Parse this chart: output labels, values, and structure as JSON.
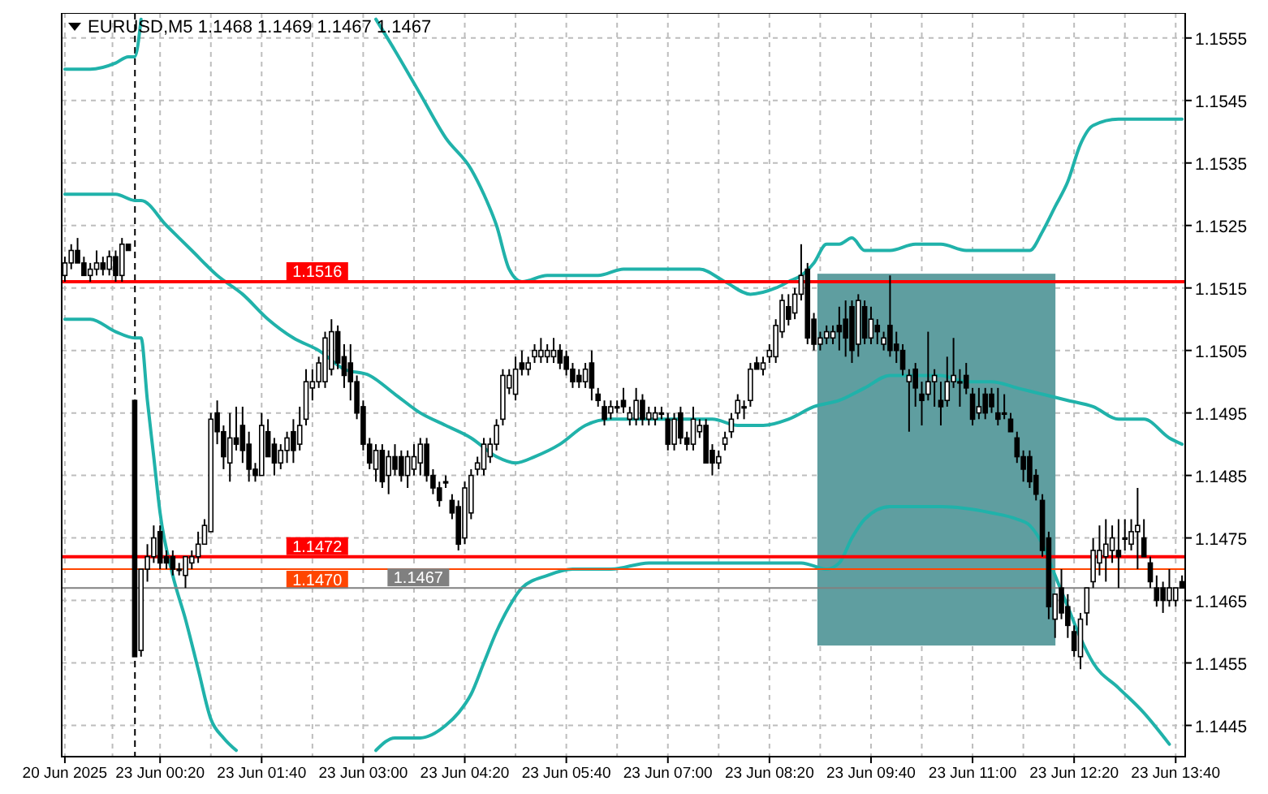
{
  "chart_data": {
    "type": "candlestick",
    "title": "EURUSD,M5  1.1468 1.1469 1.1467 1.1467",
    "categories": [
      "20 Jun 2025",
      null,
      null,
      null,
      null,
      null,
      null,
      null,
      null,
      null,
      null,
      null,
      null,
      null,
      null,
      "23 Jun 00:20",
      null,
      null,
      null,
      null,
      null,
      null,
      null,
      null,
      null,
      null,
      null,
      null,
      null,
      null,
      null,
      "23 Jun 01:40",
      null,
      null,
      null,
      null,
      null,
      null,
      null,
      null,
      null,
      null,
      null,
      null,
      null,
      null,
      null,
      "23 Jun 03:00",
      null,
      null,
      null,
      null,
      null,
      null,
      null,
      null,
      null,
      null,
      null,
      null,
      null,
      null,
      null,
      "23 Jun 04:20",
      null,
      null,
      null,
      null,
      null,
      null,
      null,
      null,
      null,
      null,
      null,
      null,
      null,
      null,
      null,
      "23 Jun 05:40",
      null,
      null,
      null,
      null,
      null,
      null,
      null,
      null,
      null,
      null,
      null,
      null,
      null,
      null,
      null,
      "23 Jun 07:00",
      null,
      null,
      null,
      null,
      null,
      null,
      null,
      null,
      null,
      null,
      null,
      null,
      null,
      null,
      null,
      "23 Jun 08:20",
      null,
      null,
      null,
      null,
      null,
      null,
      null,
      null,
      null,
      null,
      null,
      null,
      null,
      null,
      null,
      "23 Jun 09:40",
      null,
      null,
      null,
      null,
      null,
      null,
      null,
      null,
      null,
      null,
      null,
      null,
      null,
      null,
      null,
      "23 Jun 11:00",
      null,
      null,
      null,
      null,
      null,
      null,
      null,
      null,
      null,
      null,
      null,
      null,
      null,
      null,
      null,
      "23 Jun 12:20",
      null,
      null,
      null,
      null,
      null,
      null,
      null,
      null,
      null,
      null,
      null,
      null,
      null,
      null,
      null,
      "23 Jun 13:40",
      null
    ],
    "ohlc": [
      [
        1.1517,
        1.152,
        1.1516,
        1.1519
      ],
      [
        1.1519,
        1.1522,
        1.1518,
        1.1521
      ],
      [
        1.1521,
        1.1523,
        1.1519,
        1.1519
      ],
      [
        1.1519,
        1.152,
        1.1517,
        1.1517
      ],
      [
        1.1517,
        1.1519,
        1.1516,
        1.1518
      ],
      [
        1.1518,
        1.1521,
        1.1517,
        1.1519
      ],
      [
        1.1519,
        1.152,
        1.1517,
        1.1518
      ],
      [
        1.1518,
        1.1521,
        1.1517,
        1.152
      ],
      [
        1.152,
        1.1521,
        1.1516,
        1.1517
      ],
      [
        1.1517,
        1.1523,
        1.1516,
        1.1522
      ],
      [
        1.1522,
        1.1522,
        1.1521,
        1.1521
      ],
      [
        1.1497,
        1.1497,
        1.1456,
        1.1456
      ],
      [
        1.1457,
        1.147,
        1.1456,
        1.147
      ],
      [
        1.147,
        1.1474,
        1.1468,
        1.1472
      ],
      [
        1.1472,
        1.1477,
        1.1471,
        1.1475
      ],
      [
        1.1476,
        1.1477,
        1.147,
        1.1471
      ],
      [
        1.1472,
        1.1473,
        1.147,
        1.1471
      ],
      [
        1.1472,
        1.1473,
        1.1469,
        1.147
      ],
      [
        1.147,
        1.1471,
        1.1469,
        1.147
      ],
      [
        1.1469,
        1.1472,
        1.1467,
        1.1472
      ],
      [
        1.1471,
        1.1473,
        1.147,
        1.1472
      ],
      [
        1.1472,
        1.1476,
        1.1471,
        1.1474
      ],
      [
        1.1474,
        1.1478,
        1.1474,
        1.1477
      ],
      [
        1.1476,
        1.1495,
        1.1476,
        1.1494
      ],
      [
        1.1495,
        1.1497,
        1.149,
        1.1492
      ],
      [
        1.1492,
        1.1493,
        1.1486,
        1.1488
      ],
      [
        1.1487,
        1.1495,
        1.1484,
        1.1491
      ],
      [
        1.1491,
        1.1496,
        1.1489,
        1.149
      ],
      [
        1.1493,
        1.1496,
        1.1487,
        1.1489
      ],
      [
        1.149,
        1.1492,
        1.1484,
        1.1486
      ],
      [
        1.1486,
        1.1487,
        1.1484,
        1.1485
      ],
      [
        1.1485,
        1.1495,
        1.1485,
        1.1493
      ],
      [
        1.1492,
        1.1494,
        1.1488,
        1.1488
      ],
      [
        1.149,
        1.1491,
        1.1485,
        1.1487
      ],
      [
        1.1487,
        1.149,
        1.1486,
        1.1489
      ],
      [
        1.1489,
        1.1492,
        1.1487,
        1.1491
      ],
      [
        1.1492,
        1.1494,
        1.1487,
        1.1489
      ],
      [
        1.149,
        1.1496,
        1.1489,
        1.1493
      ],
      [
        1.1494,
        1.1502,
        1.1493,
        1.15
      ],
      [
        1.1499,
        1.1502,
        1.1497,
        1.15
      ],
      [
        1.15,
        1.1504,
        1.1499,
        1.1503
      ],
      [
        1.15,
        1.1508,
        1.1499,
        1.1507
      ],
      [
        1.1502,
        1.151,
        1.1501,
        1.1508
      ],
      [
        1.1508,
        1.1509,
        1.1502,
        1.1503
      ],
      [
        1.1504,
        1.1506,
        1.1499,
        1.1501
      ],
      [
        1.1503,
        1.1506,
        1.1497,
        1.15
      ],
      [
        1.15,
        1.1501,
        1.1494,
        1.1495
      ],
      [
        1.1496,
        1.1497,
        1.1489,
        1.149
      ],
      [
        1.149,
        1.1491,
        1.1486,
        1.1487
      ],
      [
        1.1486,
        1.149,
        1.1484,
        1.1489
      ],
      [
        1.1489,
        1.149,
        1.1483,
        1.1484
      ],
      [
        1.1485,
        1.1489,
        1.1482,
        1.1488
      ],
      [
        1.1488,
        1.149,
        1.1485,
        1.1486
      ],
      [
        1.1488,
        1.1489,
        1.1484,
        1.1485
      ],
      [
        1.1485,
        1.1489,
        1.1483,
        1.1488
      ],
      [
        1.1486,
        1.149,
        1.1485,
        1.1488
      ],
      [
        1.1487,
        1.1491,
        1.1485,
        1.149
      ],
      [
        1.149,
        1.1491,
        1.1484,
        1.1485
      ],
      [
        1.1485,
        1.1486,
        1.1482,
        1.1483
      ],
      [
        1.1483,
        1.1484,
        1.148,
        1.1481
      ],
      [
        1.1484,
        1.1485,
        1.1483,
        1.1484
      ],
      [
        1.1481,
        1.1482,
        1.1478,
        1.1479
      ],
      [
        1.148,
        1.1481,
        1.1473,
        1.1474
      ],
      [
        1.1475,
        1.1484,
        1.1474,
        1.1483
      ],
      [
        1.1479,
        1.1486,
        1.1478,
        1.1485
      ],
      [
        1.1486,
        1.1488,
        1.1485,
        1.1487
      ],
      [
        1.1486,
        1.1491,
        1.1485,
        1.149
      ],
      [
        1.1488,
        1.1491,
        1.1487,
        1.149
      ],
      [
        1.149,
        1.1494,
        1.1489,
        1.1493
      ],
      [
        1.1494,
        1.1502,
        1.1493,
        1.1501
      ],
      [
        1.1499,
        1.1502,
        1.1498,
        1.1501
      ],
      [
        1.1498,
        1.1504,
        1.1497,
        1.1502
      ],
      [
        1.1503,
        1.1505,
        1.1501,
        1.1502
      ],
      [
        1.1502,
        1.1504,
        1.1501,
        1.1503
      ],
      [
        1.1504,
        1.1506,
        1.1503,
        1.1505
      ],
      [
        1.1504,
        1.1507,
        1.1503,
        1.1505
      ],
      [
        1.1504,
        1.1506,
        1.1503,
        1.1505
      ],
      [
        1.1504,
        1.1507,
        1.1503,
        1.1505
      ],
      [
        1.1505,
        1.1506,
        1.1502,
        1.1503
      ],
      [
        1.1504,
        1.1505,
        1.1501,
        1.1502
      ],
      [
        1.1502,
        1.1503,
        1.1499,
        1.15
      ],
      [
        1.1501,
        1.1502,
        1.1499,
        1.15
      ],
      [
        1.15,
        1.1503,
        1.1499,
        1.1502
      ],
      [
        1.1503,
        1.1505,
        1.1497,
        1.1499
      ],
      [
        1.1498,
        1.1499,
        1.1496,
        1.1497
      ],
      [
        1.1496,
        1.1497,
        1.1493,
        1.1494
      ],
      [
        1.1495,
        1.1497,
        1.1494,
        1.1496
      ],
      [
        1.1496,
        1.1497,
        1.1495,
        1.1496
      ],
      [
        1.1497,
        1.1499,
        1.1495,
        1.1496
      ],
      [
        1.1494,
        1.1496,
        1.1493,
        1.1495
      ],
      [
        1.1494,
        1.1499,
        1.1493,
        1.1497
      ],
      [
        1.1497,
        1.1498,
        1.1493,
        1.1494
      ],
      [
        1.1494,
        1.1496,
        1.1493,
        1.1495
      ],
      [
        1.1494,
        1.1496,
        1.1493,
        1.1495
      ],
      [
        1.1495,
        1.1496,
        1.1494,
        1.1495
      ],
      [
        1.1494,
        1.1495,
        1.1489,
        1.149
      ],
      [
        1.149,
        1.1495,
        1.1489,
        1.1494
      ],
      [
        1.1495,
        1.1496,
        1.149,
        1.1491
      ],
      [
        1.1491,
        1.1492,
        1.1489,
        1.149
      ],
      [
        1.149,
        1.1496,
        1.1489,
        1.1494
      ],
      [
        1.1492,
        1.1494,
        1.1491,
        1.1493
      ],
      [
        1.1493,
        1.1494,
        1.1487,
        1.1487
      ],
      [
        1.1489,
        1.149,
        1.1485,
        1.1487
      ],
      [
        1.1487,
        1.1489,
        1.1486,
        1.1488
      ],
      [
        1.149,
        1.1492,
        1.1489,
        1.1491
      ],
      [
        1.1492,
        1.1495,
        1.1491,
        1.1494
      ],
      [
        1.1495,
        1.1498,
        1.1494,
        1.1497
      ],
      [
        1.1496,
        1.1497,
        1.1494,
        1.1496
      ],
      [
        1.1497,
        1.1503,
        1.1496,
        1.1502
      ],
      [
        1.1503,
        1.1504,
        1.1502,
        1.1502
      ],
      [
        1.1502,
        1.1504,
        1.1501,
        1.1503
      ],
      [
        1.1504,
        1.1506,
        1.1503,
        1.1505
      ],
      [
        1.1504,
        1.151,
        1.1503,
        1.1509
      ],
      [
        1.1508,
        1.1514,
        1.1507,
        1.1513
      ],
      [
        1.1512,
        1.1514,
        1.1509,
        1.151
      ],
      [
        1.1511,
        1.1515,
        1.151,
        1.1514
      ],
      [
        1.1514,
        1.1522,
        1.1513,
        1.1517
      ],
      [
        1.1518,
        1.1519,
        1.1506,
        1.1507
      ],
      [
        1.151,
        1.1511,
        1.1505,
        1.1506
      ],
      [
        1.1506,
        1.1508,
        1.1505,
        1.1507
      ],
      [
        1.1507,
        1.1509,
        1.1506,
        1.1508
      ],
      [
        1.1507,
        1.1509,
        1.1506,
        1.1508
      ],
      [
        1.1509,
        1.1512,
        1.1505,
        1.1508
      ],
      [
        1.151,
        1.1513,
        1.1504,
        1.1507
      ],
      [
        1.1512,
        1.1513,
        1.1503,
        1.1505
      ],
      [
        1.1506,
        1.1514,
        1.1504,
        1.1513
      ],
      [
        1.1512,
        1.1513,
        1.1506,
        1.1507
      ],
      [
        1.1507,
        1.1512,
        1.1506,
        1.151
      ],
      [
        1.1509,
        1.151,
        1.1506,
        1.1508
      ],
      [
        1.1506,
        1.1508,
        1.1505,
        1.1507
      ],
      [
        1.1509,
        1.1517,
        1.1504,
        1.1505
      ],
      [
        1.1506,
        1.1508,
        1.1503,
        1.1505
      ],
      [
        1.1505,
        1.1506,
        1.1501,
        1.1502
      ],
      [
        1.15,
        1.1502,
        1.1492,
        1.1501
      ],
      [
        1.1502,
        1.1503,
        1.1496,
        1.1499
      ],
      [
        1.1498,
        1.15,
        1.1493,
        1.1497
      ],
      [
        1.1498,
        1.1508,
        1.1497,
        1.15
      ],
      [
        1.15,
        1.1502,
        1.1496,
        1.1501
      ],
      [
        1.1497,
        1.15,
        1.1493,
        1.1496
      ],
      [
        1.1497,
        1.1504,
        1.1496,
        1.15
      ],
      [
        1.15,
        1.1507,
        1.1499,
        1.1501
      ],
      [
        1.15,
        1.1502,
        1.1496,
        1.15
      ],
      [
        1.1501,
        1.1503,
        1.1498,
        1.1499
      ],
      [
        1.1498,
        1.1499,
        1.1493,
        1.1494
      ],
      [
        1.1495,
        1.1499,
        1.1494,
        1.1496
      ],
      [
        1.1498,
        1.1499,
        1.1494,
        1.1495
      ],
      [
        1.1498,
        1.1499,
        1.1495,
        1.1496
      ],
      [
        1.1495,
        1.1499,
        1.1493,
        1.1494
      ],
      [
        1.1495,
        1.1498,
        1.1494,
        1.1495
      ],
      [
        1.1494,
        1.1495,
        1.1492,
        1.1492
      ],
      [
        1.1491,
        1.1492,
        1.1487,
        1.1488
      ],
      [
        1.1488,
        1.1489,
        1.1484,
        1.1486
      ],
      [
        1.1488,
        1.1489,
        1.1483,
        1.1484
      ],
      [
        1.1485,
        1.1486,
        1.1481,
        1.1482
      ],
      [
        1.1481,
        1.1482,
        1.1472,
        1.1473
      ],
      [
        1.1475,
        1.1476,
        1.1462,
        1.1464
      ],
      [
        1.1462,
        1.1466,
        1.1459,
        1.1466
      ],
      [
        1.1467,
        1.147,
        1.1462,
        1.1463
      ],
      [
        1.1464,
        1.1466,
        1.1459,
        1.1461
      ],
      [
        1.146,
        1.1461,
        1.1456,
        1.1457
      ],
      [
        1.1456,
        1.1463,
        1.1454,
        1.1462
      ],
      [
        1.1463,
        1.1467,
        1.1461,
        1.1467
      ],
      [
        1.1468,
        1.1475,
        1.1467,
        1.1473
      ],
      [
        1.1471,
        1.1477,
        1.1469,
        1.1473
      ],
      [
        1.1472,
        1.1478,
        1.1468,
        1.1474
      ],
      [
        1.1473,
        1.1477,
        1.1471,
        1.1475
      ],
      [
        1.1473,
        1.1478,
        1.1467,
        1.1472
      ],
      [
        1.1475,
        1.1478,
        1.1473,
        1.1475
      ],
      [
        1.1474,
        1.1478,
        1.1473,
        1.1476
      ],
      [
        1.1476,
        1.1483,
        1.147,
        1.1477
      ],
      [
        1.1475,
        1.1478,
        1.1472,
        1.1472
      ],
      [
        1.1471,
        1.1472,
        1.1467,
        1.1468
      ],
      [
        1.1467,
        1.1469,
        1.1464,
        1.1465
      ],
      [
        1.1467,
        1.1468,
        1.1463,
        1.1465
      ],
      [
        1.1465,
        1.147,
        1.1464,
        1.1467
      ],
      [
        1.1465,
        1.1467,
        1.1464,
        1.1467
      ],
      [
        1.1468,
        1.1469,
        1.1467,
        1.1467
      ]
    ],
    "series": [
      {
        "type": "line",
        "color": "#20b2aa",
        "values": [
          1.155,
          null,
          null,
          null,
          1.155,
          null,
          null,
          null,
          1.1551,
          null,
          1.1552,
          1.1552,
          1.1558,
          null,
          null,
          null,
          null,
          null,
          null,
          null,
          null,
          null,
          null,
          null,
          null,
          null,
          null,
          null,
          null,
          null,
          null,
          null,
          null,
          null,
          null,
          null,
          null,
          null,
          null,
          null,
          null,
          null,
          null,
          null,
          null,
          null,
          null,
          null,
          null,
          1.1558,
          null,
          null,
          1.1553,
          null,
          null,
          null,
          1.1546,
          null,
          null,
          null,
          1.1539,
          null,
          null,
          null,
          1.1534,
          null,
          1.153,
          null,
          1.1525,
          null,
          1.1518,
          null,
          1.1516,
          null,
          null,
          null,
          1.1517,
          null,
          null,
          null,
          1.1517,
          null,
          null,
          null,
          1.1517,
          null,
          null,
          null,
          1.1518,
          null,
          null,
          null,
          1.1518,
          null,
          null,
          null,
          1.1518,
          null,
          null,
          null,
          1.1518,
          null,
          null,
          null,
          1.1516,
          null,
          null,
          null,
          1.1514,
          null,
          null,
          null,
          1.1515,
          null,
          1.1516,
          null,
          1.1517,
          null,
          1.1519,
          null,
          1.1522,
          null,
          1.1522,
          null,
          1.1523,
          null,
          1.1521,
          null,
          null,
          null,
          1.1521,
          null,
          null,
          null,
          1.1522,
          null,
          null,
          null,
          1.1522,
          null,
          null,
          null,
          1.1521,
          null,
          null,
          null,
          1.1521,
          null,
          null,
          null,
          1.1521,
          null,
          1.1521,
          null,
          1.1524,
          null,
          1.1528,
          null,
          1.1532,
          null,
          1.1538,
          null,
          1.1541,
          null,
          null,
          null,
          1.1542,
          null,
          null,
          null,
          1.1542,
          null,
          1.1542,
          null,
          1.1542,
          null,
          1.1542
        ]
      },
      {
        "type": "line",
        "color": "#20b2aa",
        "values": [
          1.153,
          null,
          null,
          null,
          1.153,
          null,
          null,
          null,
          1.153,
          null,
          null,
          1.1529,
          1.1529,
          null,
          null,
          null,
          1.1525,
          null,
          null,
          null,
          1.1521,
          null,
          null,
          null,
          1.1517,
          null,
          null,
          null,
          1.1514,
          null,
          null,
          null,
          1.151,
          null,
          null,
          null,
          1.1507,
          null,
          null,
          null,
          1.1505,
          null,
          null,
          null,
          1.1502,
          null,
          null,
          null,
          1.1501,
          null,
          null,
          null,
          1.1498,
          null,
          null,
          null,
          1.1495,
          null,
          null,
          null,
          1.1493,
          null,
          null,
          null,
          1.1491,
          null,
          null,
          null,
          1.1488,
          null,
          null,
          1.1487,
          null,
          null,
          1.1488,
          null,
          null,
          null,
          1.149,
          null,
          null,
          null,
          1.1493,
          null,
          null,
          null,
          1.1494,
          null,
          null,
          null,
          1.1494,
          null,
          null,
          null,
          1.1494,
          null,
          null,
          null,
          1.1494,
          null,
          null,
          null,
          1.1494,
          null,
          null,
          null,
          1.1493,
          null,
          null,
          null,
          1.1493,
          null,
          null,
          null,
          1.1494,
          null,
          null,
          null,
          1.1496,
          null,
          null,
          null,
          1.1497,
          null,
          null,
          null,
          1.1499,
          null,
          null,
          null,
          1.1501,
          null,
          null,
          null,
          1.1501,
          null,
          null,
          null,
          1.1501,
          null,
          null,
          null,
          1.15,
          null,
          null,
          null,
          1.15,
          null,
          null,
          null,
          1.1499,
          null,
          null,
          null,
          1.1498,
          null,
          null,
          null,
          1.1497,
          null,
          null,
          null,
          1.1496,
          null,
          null,
          null,
          1.1494,
          null,
          null,
          null,
          1.1494,
          null,
          null,
          null,
          1.1491,
          null,
          1.149
        ]
      },
      {
        "type": "line",
        "color": "#20b2aa",
        "values": [
          1.151,
          null,
          null,
          null,
          1.151,
          null,
          null,
          null,
          1.1508,
          null,
          null,
          1.1507,
          1.1507,
          1.1497,
          1.1488,
          1.1479,
          null,
          1.1469,
          null,
          1.1462,
          null,
          1.1454,
          null,
          1.1446,
          null,
          1.1443,
          null,
          1.1441,
          null,
          null,
          null,
          null,
          null,
          null,
          null,
          null,
          null,
          null,
          null,
          null,
          null,
          null,
          null,
          null,
          null,
          null,
          null,
          null,
          null,
          1.1441,
          null,
          null,
          1.1443,
          null,
          null,
          null,
          1.1443,
          null,
          null,
          null,
          1.1445,
          null,
          1.1447,
          null,
          1.145,
          null,
          1.1455,
          null,
          1.146,
          null,
          1.1464,
          null,
          1.1467,
          null,
          null,
          null,
          1.1469,
          null,
          null,
          null,
          1.147,
          null,
          null,
          null,
          null,
          null,
          1.147,
          null,
          null,
          null,
          null,
          null,
          1.1471,
          null,
          null,
          null,
          null,
          null,
          1.1471,
          null,
          null,
          null,
          null,
          null,
          1.1471,
          null,
          null,
          null,
          null,
          null,
          1.1471,
          null,
          null,
          null,
          null,
          null,
          1.1471,
          null,
          null,
          null,
          1.147,
          null,
          1.1471,
          null,
          1.1475,
          null,
          1.1478,
          null,
          null,
          null,
          1.148,
          null,
          null,
          null,
          null,
          null,
          null,
          null,
          1.148,
          null,
          null,
          null,
          null,
          null,
          null,
          null,
          1.1479,
          null,
          null,
          null,
          1.1478,
          null,
          1.1477,
          null,
          1.1474,
          null,
          1.1469,
          null,
          1.1464,
          null,
          1.1459,
          null,
          1.1455,
          null,
          null,
          null,
          1.1451,
          null,
          null,
          null,
          1.1447,
          null,
          null,
          null,
          1.1442,
          null,
          null
        ]
      }
    ],
    "ylim": [
      1.144,
      1.1559
    ],
    "yticks": [
      1.1445,
      1.1455,
      1.1465,
      1.1475,
      1.1485,
      1.1495,
      1.1505,
      1.1515,
      1.1525,
      1.1535,
      1.1545,
      1.1555
    ],
    "grid": true,
    "ref_lines": [
      {
        "axis": "y",
        "value": 1.1516,
        "label": "1.1516",
        "color": "#ff0000"
      },
      {
        "axis": "y",
        "value": 1.1472,
        "label": "1.1472",
        "color": "#ff0000"
      },
      {
        "axis": "y",
        "value": 1.147,
        "label": "1.1470",
        "color": "#ff4500"
      },
      {
        "axis": "y",
        "value": 1.1467,
        "label": "1.1467",
        "color": "#808080"
      }
    ]
  }
}
